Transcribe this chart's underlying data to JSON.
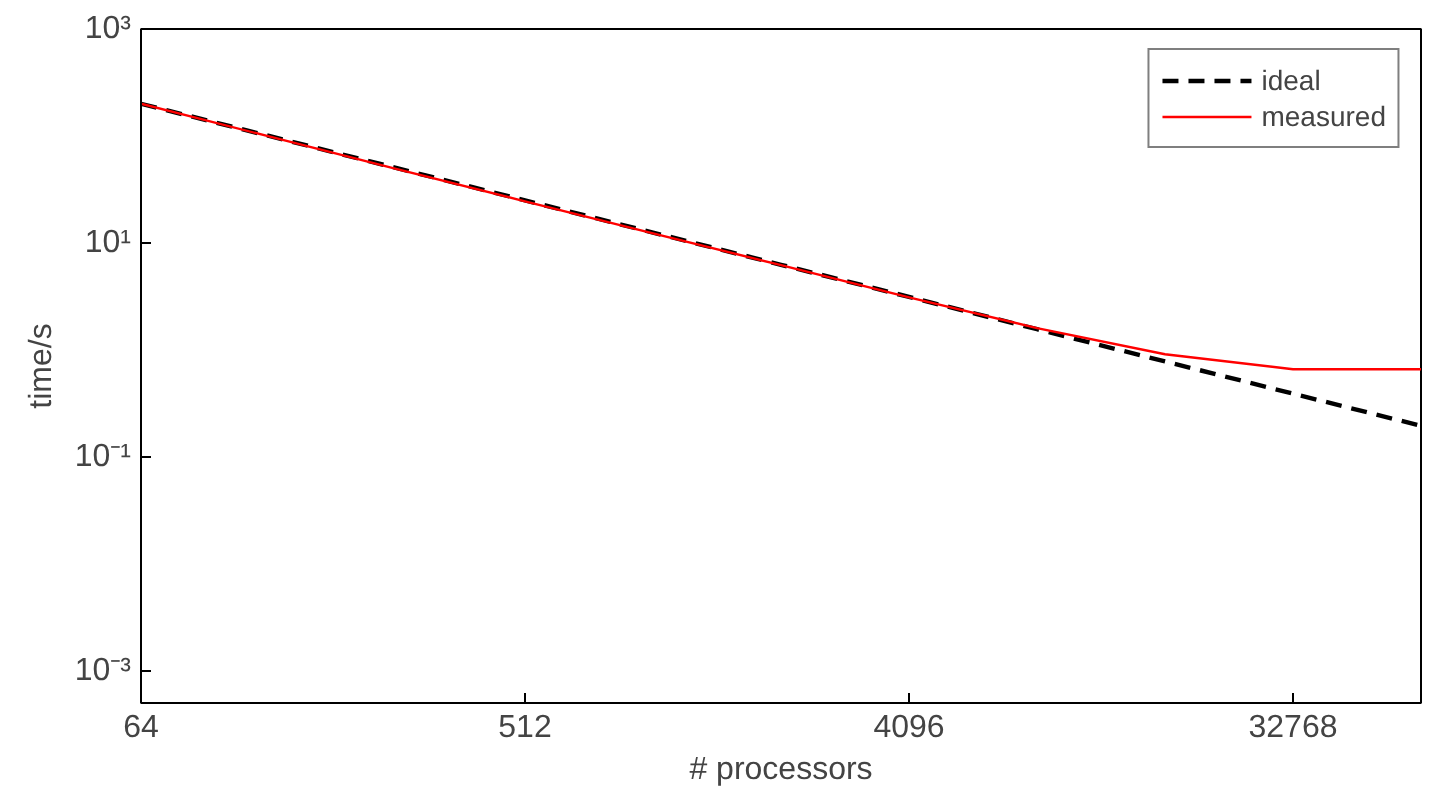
{
  "chart_data": {
    "type": "line",
    "xlabel": "# processors",
    "ylabel": "time/s",
    "log": "xy",
    "x": [
      64,
      128,
      256,
      512,
      1024,
      2048,
      4096,
      8192,
      16384,
      32768,
      65536
    ],
    "series": [
      {
        "name": "ideal",
        "color": "#000000",
        "line_style": "dashed",
        "values": [
          200,
          100,
          50,
          25,
          12.5,
          6.25,
          3.13,
          1.56,
          0.78,
          0.39,
          0.195
        ]
      },
      {
        "name": "measured",
        "color": "#ff0000",
        "line_style": "solid",
        "values": [
          200,
          99,
          49,
          24.5,
          12.3,
          6.2,
          3.1,
          1.6,
          0.91,
          0.66,
          0.66
        ]
      }
    ],
    "xlim": [
      64,
      65536
    ],
    "ylim": [
      0.0005,
      1000
    ],
    "xticks": [
      64,
      512,
      4096,
      32768
    ],
    "yticks": [
      {
        "value": 0.001,
        "label": "10⁻³"
      },
      {
        "value": 0.1,
        "label": "10⁻¹"
      },
      {
        "value": 10,
        "label": "10¹"
      },
      {
        "value": 1000,
        "label": "10³"
      }
    ],
    "grid": false,
    "legend": "top right",
    "marker": "none"
  }
}
